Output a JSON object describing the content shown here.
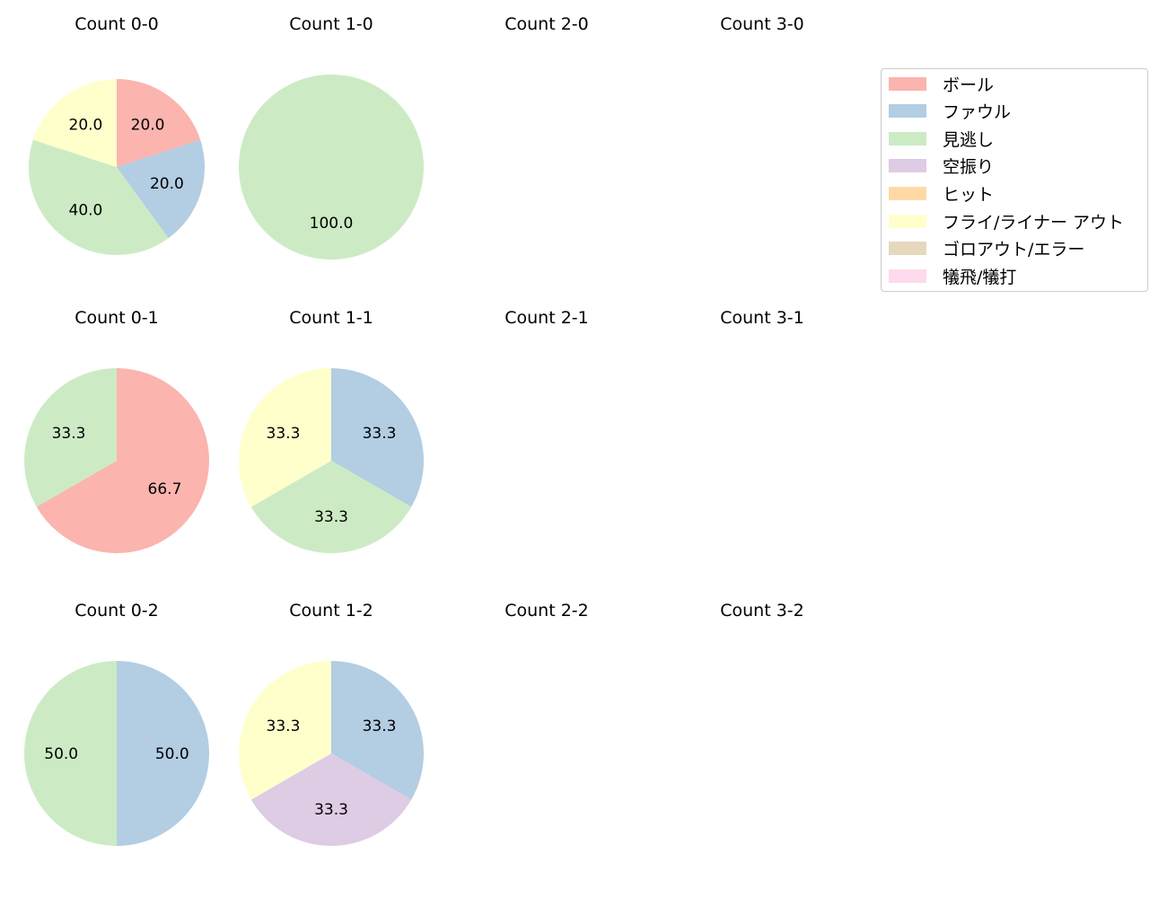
{
  "legend": {
    "items": [
      {
        "label": "ボール",
        "color": "#fbb4ae"
      },
      {
        "label": "ファウル",
        "color": "#b3cde3"
      },
      {
        "label": "見逃し",
        "color": "#ccebc5"
      },
      {
        "label": "空振り",
        "color": "#decbe4"
      },
      {
        "label": "ヒット",
        "color": "#fed9a6"
      },
      {
        "label": "フライ/ライナー アウト",
        "color": "#ffffcc"
      },
      {
        "label": "ゴロアウト/エラー",
        "color": "#e5d8bd"
      },
      {
        "label": "犠飛/犠打",
        "color": "#fddaec"
      }
    ]
  },
  "subplots": [
    {
      "title": "Count 0-0",
      "col": 0,
      "row": 0
    },
    {
      "title": "Count 1-0",
      "col": 1,
      "row": 0
    },
    {
      "title": "Count 2-0",
      "col": 2,
      "row": 0
    },
    {
      "title": "Count 3-0",
      "col": 3,
      "row": 0
    },
    {
      "title": "Count 0-1",
      "col": 0,
      "row": 1
    },
    {
      "title": "Count 1-1",
      "col": 1,
      "row": 1
    },
    {
      "title": "Count 2-1",
      "col": 2,
      "row": 1
    },
    {
      "title": "Count 3-1",
      "col": 3,
      "row": 1
    },
    {
      "title": "Count 0-2",
      "col": 0,
      "row": 2
    },
    {
      "title": "Count 1-2",
      "col": 1,
      "row": 2
    },
    {
      "title": "Count 2-2",
      "col": 2,
      "row": 2
    },
    {
      "title": "Count 3-2",
      "col": 3,
      "row": 2
    }
  ],
  "chart_data": [
    {
      "type": "pie",
      "title": "Count 0-0",
      "slices": [
        {
          "category": "ボール",
          "value": 20.0
        },
        {
          "category": "ファウル",
          "value": 20.0
        },
        {
          "category": "見逃し",
          "value": 40.0
        },
        {
          "category": "フライ/ライナー アウト",
          "value": 20.0
        }
      ]
    },
    {
      "type": "pie",
      "title": "Count 1-0",
      "slices": [
        {
          "category": "見逃し",
          "value": 100.0
        }
      ]
    },
    {
      "type": "pie",
      "title": "Count 2-0",
      "slices": []
    },
    {
      "type": "pie",
      "title": "Count 3-0",
      "slices": []
    },
    {
      "type": "pie",
      "title": "Count 0-1",
      "slices": [
        {
          "category": "ボール",
          "value": 66.7
        },
        {
          "category": "見逃し",
          "value": 33.3
        }
      ]
    },
    {
      "type": "pie",
      "title": "Count 1-1",
      "slices": [
        {
          "category": "ファウル",
          "value": 33.3
        },
        {
          "category": "見逃し",
          "value": 33.3
        },
        {
          "category": "フライ/ライナー アウト",
          "value": 33.3
        }
      ]
    },
    {
      "type": "pie",
      "title": "Count 2-1",
      "slices": []
    },
    {
      "type": "pie",
      "title": "Count 3-1",
      "slices": []
    },
    {
      "type": "pie",
      "title": "Count 0-2",
      "slices": [
        {
          "category": "ファウル",
          "value": 50.0
        },
        {
          "category": "見逃し",
          "value": 50.0
        }
      ]
    },
    {
      "type": "pie",
      "title": "Count 1-2",
      "slices": [
        {
          "category": "ファウル",
          "value": 33.3
        },
        {
          "category": "空振り",
          "value": 33.3
        },
        {
          "category": "フライ/ライナー アウト",
          "value": 33.3
        }
      ]
    },
    {
      "type": "pie",
      "title": "Count 2-2",
      "slices": []
    },
    {
      "type": "pie",
      "title": "Count 3-2",
      "slices": []
    }
  ]
}
